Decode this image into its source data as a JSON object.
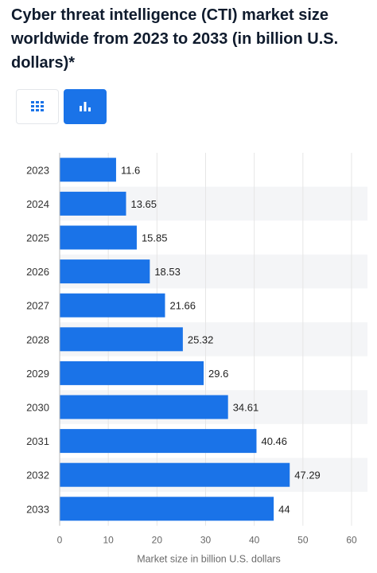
{
  "title": "Cyber threat intelligence (CTI) market size worldwide from 2023 to 2033 (in billion U.S. dollars)*",
  "view_toggle": {
    "table_icon": "table-grid-icon",
    "chart_icon": "bar-chart-icon",
    "active": "chart"
  },
  "colors": {
    "bar": "#1a73e8",
    "band": "#f4f5f7",
    "toggle_active": "#1a73e8"
  },
  "chart_data": {
    "type": "bar",
    "orientation": "horizontal",
    "categories": [
      "2023",
      "2024",
      "2025",
      "2026",
      "2027",
      "2028",
      "2029",
      "2030",
      "2031",
      "2032",
      "2033"
    ],
    "values": [
      11.6,
      13.65,
      15.85,
      18.53,
      21.66,
      25.32,
      29.6,
      34.61,
      40.46,
      47.29,
      44
    ],
    "value_labels": [
      "11.6",
      "13.65",
      "15.85",
      "18.53",
      "21.66",
      "25.32",
      "29.6",
      "34.61",
      "40.46",
      "47.29",
      "44"
    ],
    "xlim": [
      0,
      60
    ],
    "xticks": [
      0,
      10,
      20,
      30,
      40,
      50,
      60
    ],
    "xlabel": "Market size in billion U.S. dollars",
    "ylabel": "",
    "grid": true,
    "legend": "none"
  }
}
